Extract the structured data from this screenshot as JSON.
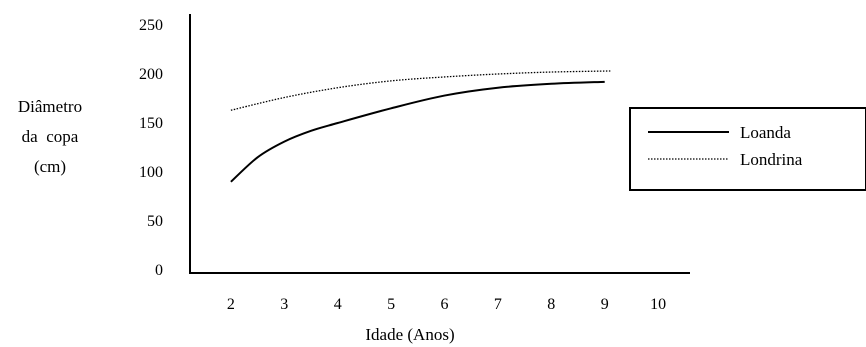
{
  "chart_data": {
    "type": "line",
    "title": "",
    "xlabel": "Idade (Anos)",
    "ylabel_lines": [
      "Diâmetro",
      "da  copa",
      "(cm)"
    ],
    "x_ticks": [
      "2",
      "3",
      "4",
      "5",
      "6",
      "7",
      "8",
      "9",
      "10"
    ],
    "y_ticks": [
      "0",
      "50",
      "100",
      "150",
      "200",
      "250"
    ],
    "xlim": [
      1,
      11
    ],
    "ylim": [
      0,
      250
    ],
    "grid": false,
    "legend_position": "right",
    "series": [
      {
        "name": "Loanda",
        "style": "solid",
        "color": "#000000",
        "x": [
          2,
          2.5,
          3,
          3.5,
          4,
          5,
          6,
          7,
          8,
          9
        ],
        "y": [
          90,
          115,
          131,
          142,
          150,
          165,
          178,
          186,
          190,
          192
        ]
      },
      {
        "name": "Londrina",
        "style": "dotted",
        "color": "#000000",
        "x": [
          2,
          3,
          4,
          5,
          6,
          7,
          8,
          9,
          9.1
        ],
        "y": [
          163,
          176,
          186,
          193,
          197,
          200,
          202,
          203,
          203
        ]
      }
    ]
  }
}
